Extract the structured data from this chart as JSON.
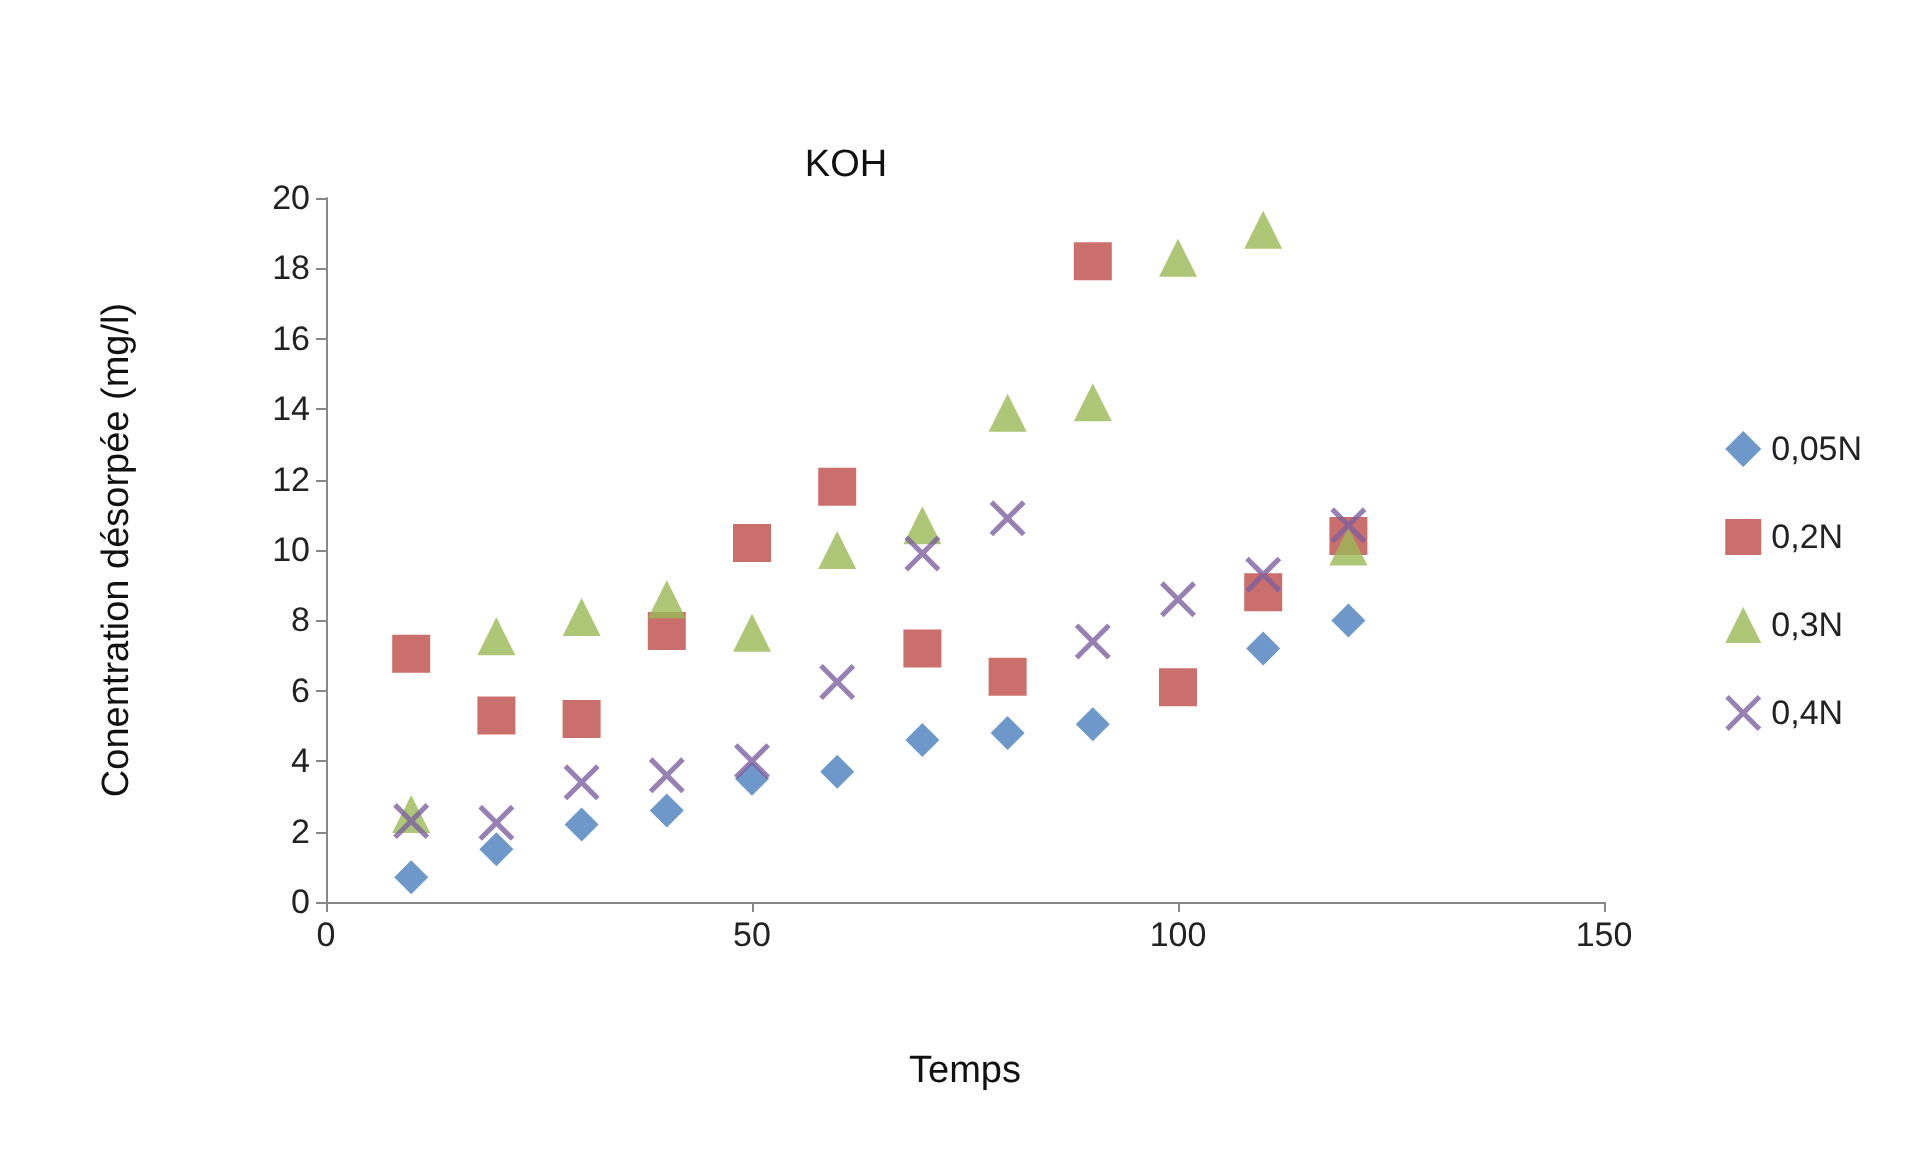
{
  "chart_data": {
    "type": "scatter",
    "title": "KOH",
    "xlabel": "Temps",
    "ylabel": "Conentration désorpée (mg/l)",
    "x": [
      10,
      20,
      30,
      40,
      50,
      60,
      70,
      80,
      90,
      100,
      110,
      120
    ],
    "series": [
      {
        "name": "0,05N",
        "color": "#4a7ebb",
        "marker": "diamond",
        "values": [
          0.7,
          1.5,
          2.2,
          2.6,
          3.5,
          3.7,
          4.6,
          4.8,
          5.05,
          null,
          7.2,
          8.0
        ]
      },
      {
        "name": "0,2N",
        "color": "#be4b48",
        "marker": "square",
        "values": [
          7.05,
          5.3,
          5.2,
          7.7,
          10.2,
          11.8,
          7.2,
          6.4,
          18.2,
          6.1,
          8.8,
          10.4
        ]
      },
      {
        "name": "0,3N",
        "color": "#98b954",
        "marker": "triangle",
        "values": [
          2.5,
          7.55,
          8.1,
          8.6,
          7.65,
          10.0,
          10.7,
          13.9,
          14.2,
          18.3,
          19.1,
          10.1
        ]
      },
      {
        "name": "0,4N",
        "color": "#7d60a0",
        "marker": "cross",
        "values": [
          2.3,
          2.25,
          3.4,
          3.6,
          4.0,
          6.25,
          9.9,
          10.9,
          7.4,
          8.6,
          9.3,
          10.7
        ]
      }
    ],
    "xlim": [
      0,
      150
    ],
    "xticks": [
      0,
      50,
      100,
      150
    ],
    "ylim": [
      0,
      20
    ],
    "yticks": [
      0,
      2,
      4,
      6,
      8,
      10,
      12,
      14,
      16,
      18,
      20
    ],
    "grid": false,
    "legend": "right"
  }
}
